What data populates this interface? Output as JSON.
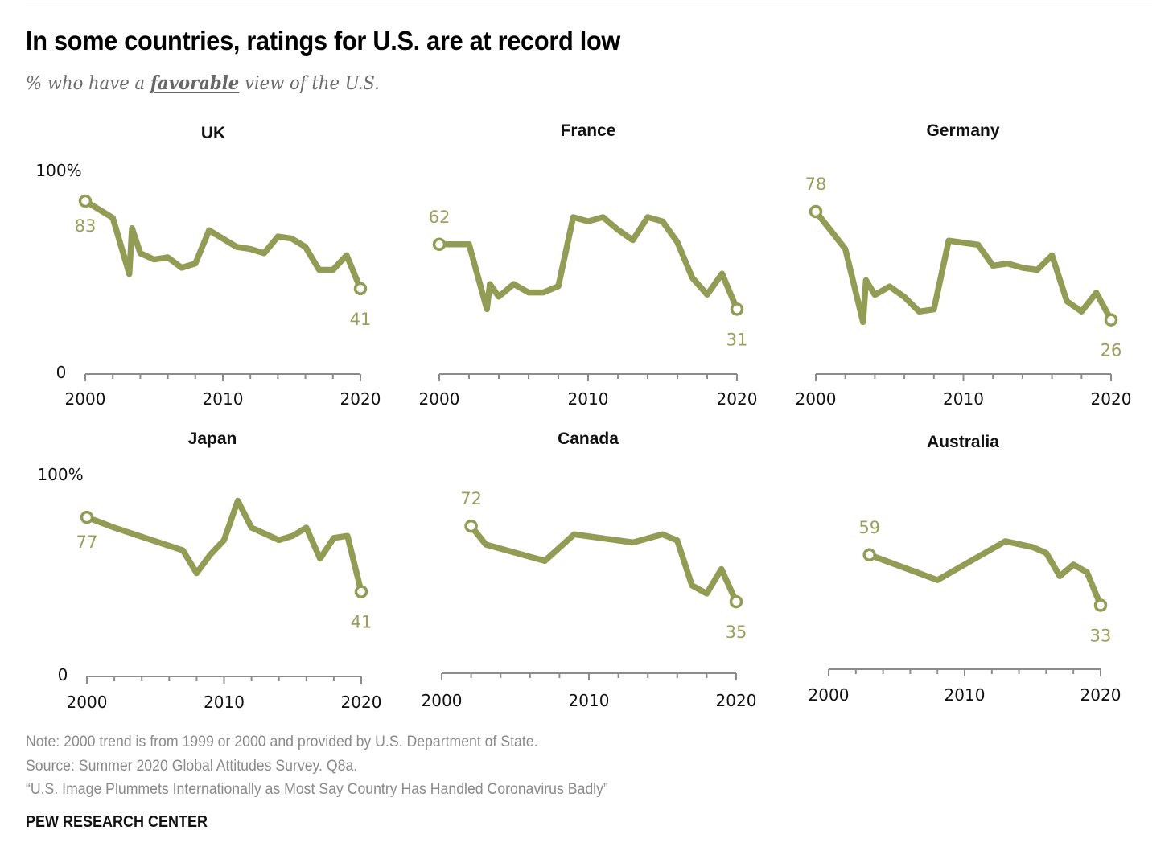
{
  "header": {
    "title": "In some countries, ratings for U.S. are at record low",
    "subtitle_pre": "% who have a ",
    "subtitle_emph": "favorable",
    "subtitle_post": " view of the U.S."
  },
  "colors": {
    "line": "#939c55",
    "label": "#9a9f5c",
    "axis": "#8c8c8c",
    "text": "#111111",
    "note": "#8a8a8a"
  },
  "chart_data": [
    {
      "type": "line",
      "title": "UK",
      "ylim": [
        0,
        100
      ],
      "xlim": [
        2000,
        2020
      ],
      "ytick_labels": [
        "0",
        "100%"
      ],
      "xtick_labels": [
        "2000",
        "2010",
        "2020"
      ],
      "x": [
        2000,
        2002,
        2003.2,
        2003.4,
        2004,
        2005,
        2006,
        2007,
        2008,
        2009,
        2011,
        2012,
        2013,
        2014,
        2015,
        2016,
        2017,
        2018,
        2019,
        2020
      ],
      "values": [
        83,
        75,
        48,
        70,
        58,
        55,
        56,
        51,
        53,
        69,
        61,
        60,
        58,
        66,
        65,
        61,
        50,
        50,
        57,
        41
      ],
      "start_label": "83",
      "end_label": "41"
    },
    {
      "type": "line",
      "title": "France",
      "ylim": [
        0,
        100
      ],
      "xlim": [
        2000,
        2020
      ],
      "xtick_labels": [
        "2000",
        "2010",
        "2020"
      ],
      "x": [
        2000,
        2002,
        2003.2,
        2003.4,
        2004,
        2005,
        2006,
        2007,
        2008,
        2009,
        2010,
        2011,
        2012,
        2013,
        2014,
        2015,
        2016,
        2017,
        2018,
        2019,
        2020
      ],
      "values": [
        62,
        62,
        31,
        43,
        37,
        43,
        39,
        39,
        42,
        75,
        73,
        75,
        69,
        64,
        75,
        73,
        63,
        46,
        38,
        48,
        31
      ],
      "start_label": "62",
      "end_label": "31"
    },
    {
      "type": "line",
      "title": "Germany",
      "ylim": [
        0,
        100
      ],
      "xlim": [
        2000,
        2020
      ],
      "xtick_labels": [
        "2000",
        "2010",
        "2020"
      ],
      "x": [
        2000,
        2002,
        2003.2,
        2003.4,
        2004,
        2005,
        2006,
        2007,
        2008,
        2009,
        2011,
        2012,
        2013,
        2014,
        2015,
        2016,
        2017,
        2018,
        2019,
        2020
      ],
      "values": [
        78,
        60,
        25,
        45,
        38,
        42,
        37,
        30,
        31,
        64,
        62,
        52,
        53,
        51,
        50,
        57,
        35,
        30,
        39,
        26
      ],
      "start_label": "78",
      "end_label": "26"
    },
    {
      "type": "line",
      "title": "Japan",
      "ylim": [
        0,
        100
      ],
      "xlim": [
        2000,
        2020
      ],
      "ytick_labels": [
        "0",
        "100%"
      ],
      "xtick_labels": [
        "2000",
        "2010",
        "2020"
      ],
      "x": [
        2000,
        2002,
        2007,
        2008,
        2009,
        2010,
        2011,
        2012,
        2013,
        2014,
        2015,
        2016,
        2017,
        2018,
        2019,
        2020
      ],
      "values": [
        77,
        72,
        61,
        50,
        59,
        66,
        85,
        72,
        69,
        66,
        68,
        72,
        57,
        67,
        68,
        41
      ],
      "start_label": "77",
      "end_label": "41"
    },
    {
      "type": "line",
      "title": "Canada",
      "ylim": [
        0,
        100
      ],
      "xlim": [
        2000,
        2020
      ],
      "xtick_labels": [
        "2000",
        "2010",
        "2020"
      ],
      "x": [
        2002,
        2003,
        2007,
        2009,
        2013,
        2015,
        2016,
        2017,
        2018,
        2019,
        2020
      ],
      "values": [
        72,
        63,
        55,
        68,
        64,
        68,
        65,
        43,
        39,
        51,
        35
      ],
      "start_label": "72",
      "end_label": "35"
    },
    {
      "type": "line",
      "title": "Australia",
      "ylim": [
        0,
        100
      ],
      "xlim": [
        2000,
        2020
      ],
      "xtick_labels": [
        "2000",
        "2010",
        "2020"
      ],
      "x": [
        2003,
        2008,
        2013,
        2015,
        2016,
        2017,
        2018,
        2019,
        2020
      ],
      "values": [
        59,
        46,
        66,
        63,
        60,
        48,
        54,
        50,
        33
      ],
      "start_label": "59",
      "end_label": "33"
    }
  ],
  "footer": {
    "note": "Note: 2000 trend is from 1999 or 2000 and provided by U.S. Department of State.",
    "source": "Source: Summer 2020 Global Attitudes Survey. Q8a.",
    "report": "“U.S. Image Plummets Internationally as Most Say Country Has Handled Coronavirus Badly”",
    "brand": "PEW RESEARCH CENTER"
  }
}
